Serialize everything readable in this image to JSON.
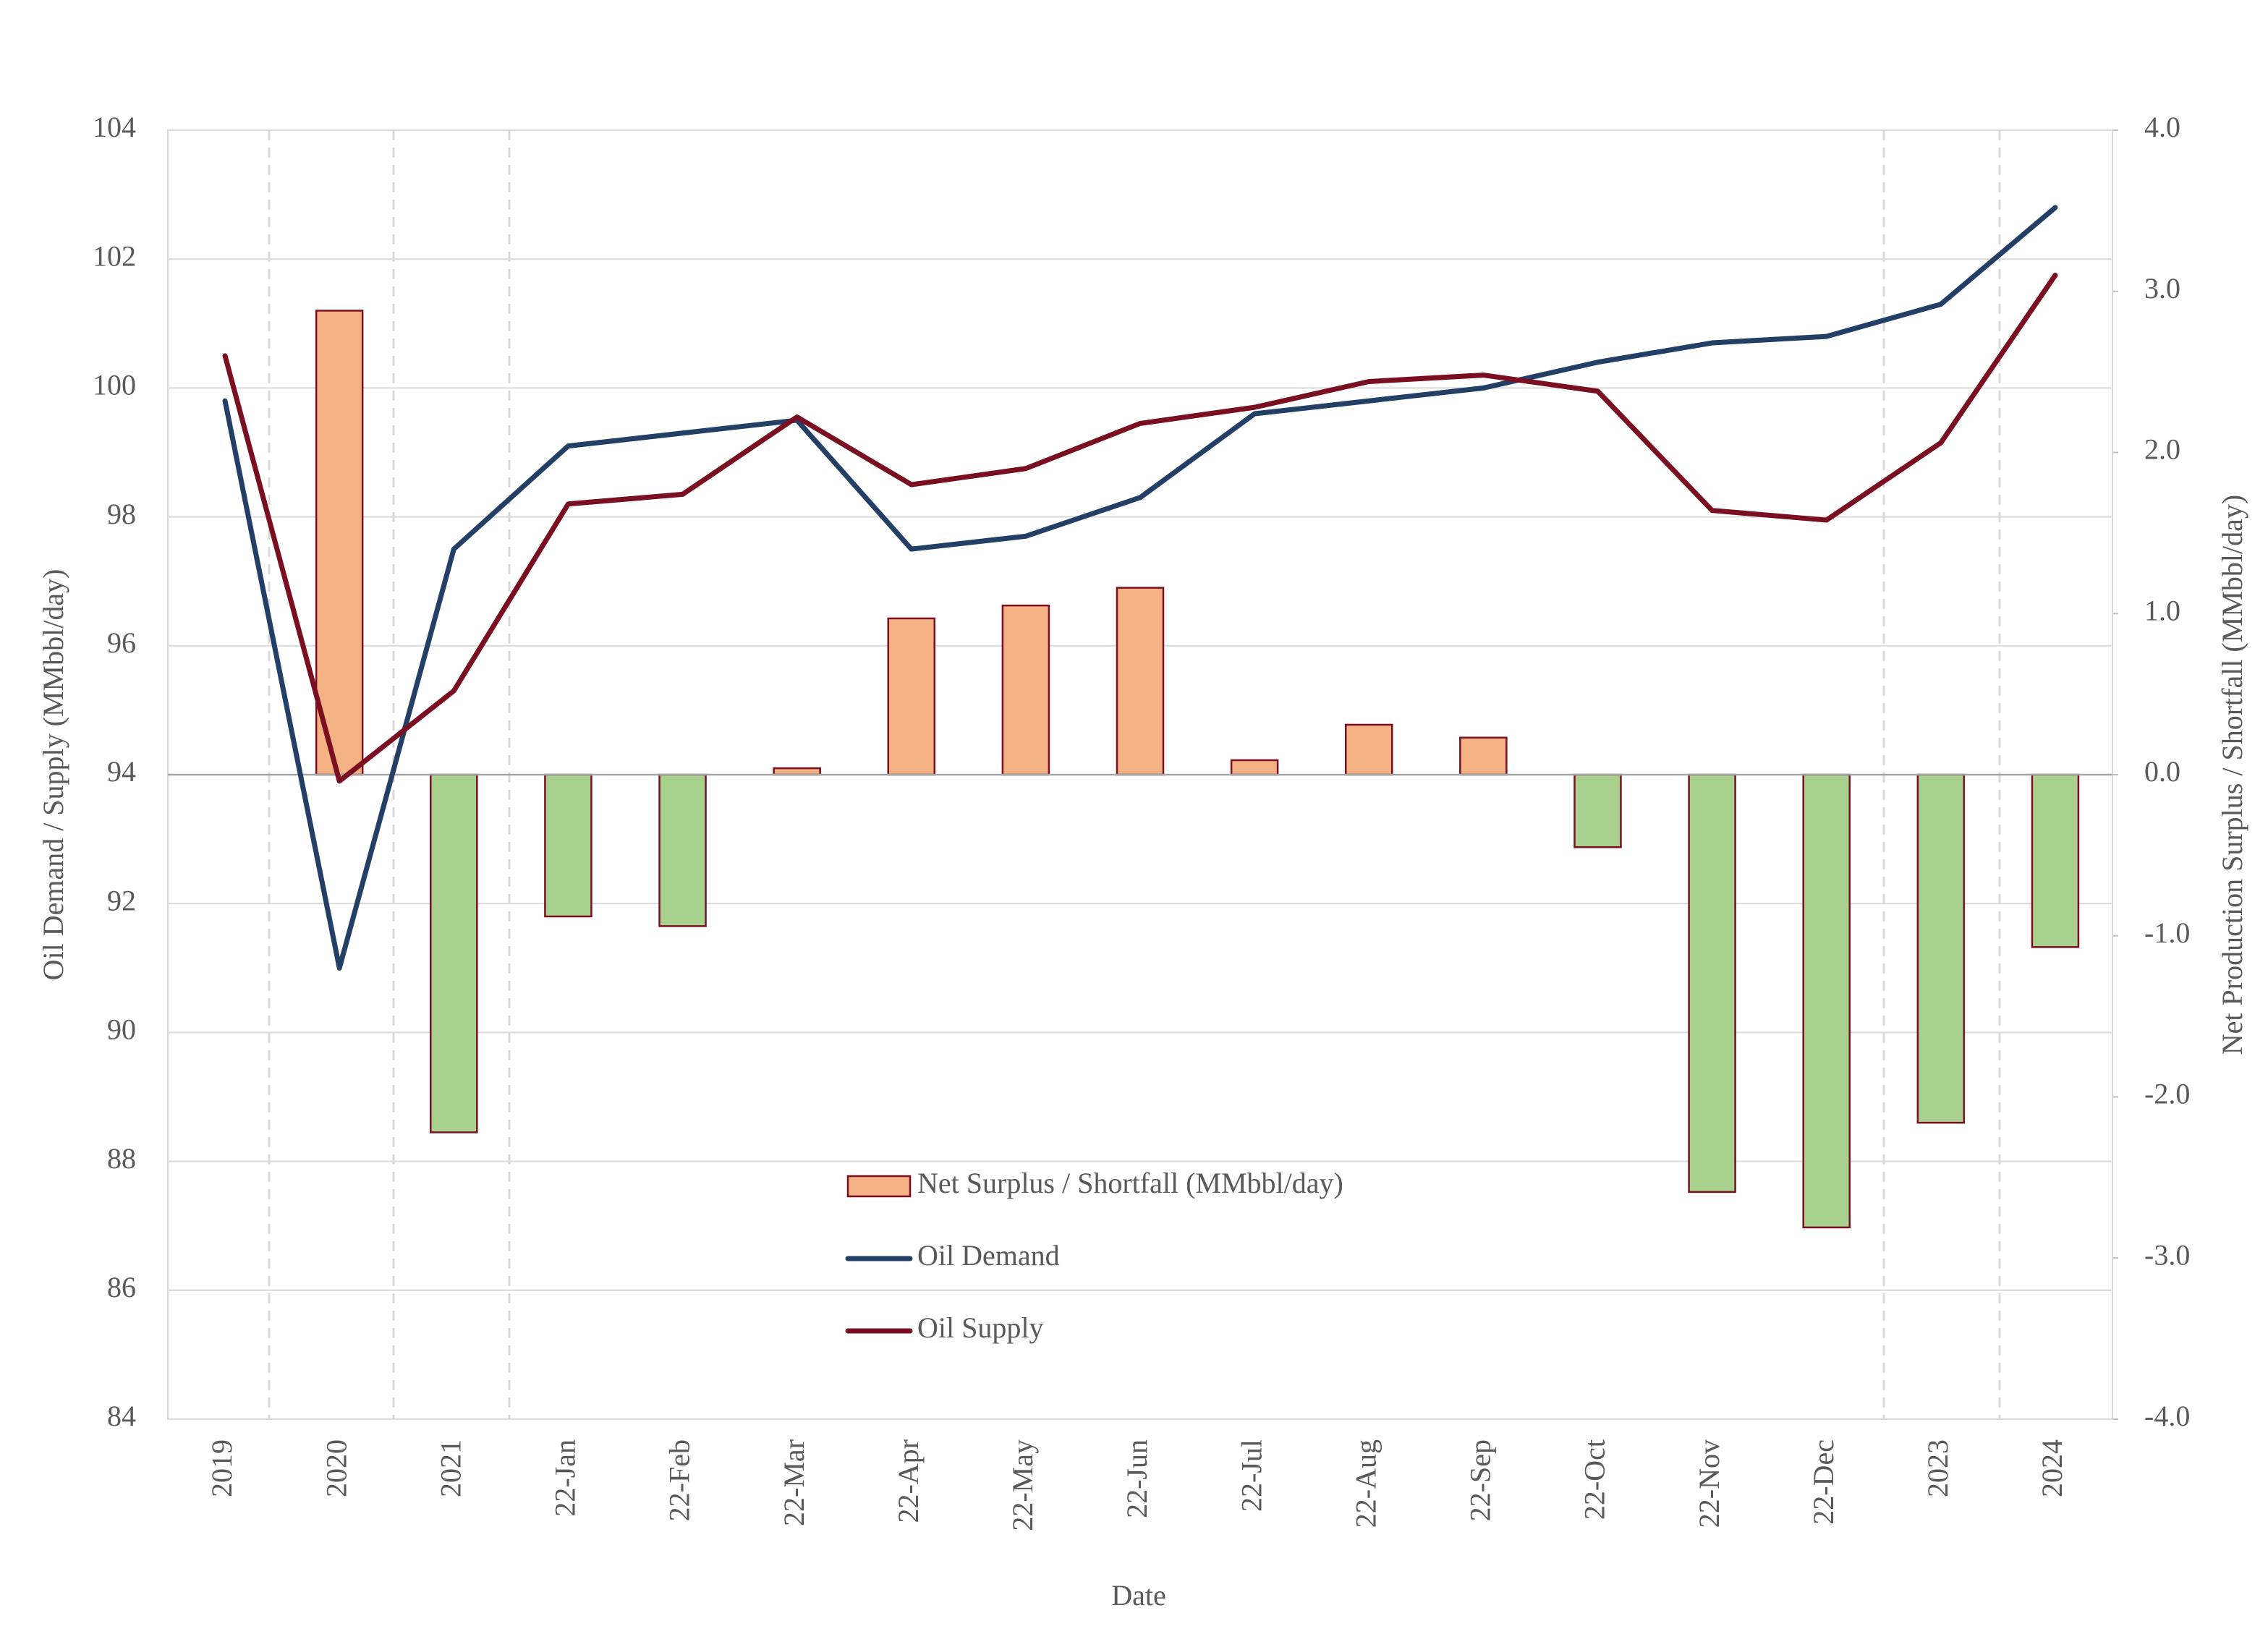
{
  "chart_data": {
    "type": "bar-line",
    "x_label": "Date",
    "y_label": "Oil Demand / Supply (MMbbl/day)",
    "y2_label": "Net Production Surplus / Shortfall (MMbbl/day)",
    "categories": [
      "2019",
      "2020",
      "2021",
      "22-Jan",
      "22-Feb",
      "22-Mar",
      "22-Apr",
      "22-May",
      "22-Jun",
      "22-Jul",
      "22-Aug",
      "22-Sep",
      "22-Oct",
      "22-Nov",
      "22-Dec",
      "2023",
      "2024"
    ],
    "series": [
      {
        "name": "Net Surplus / Shortfall (MMbbl/day)",
        "type": "bar",
        "axis": "y2",
        "color": "#f4b183",
        "negative_color": "#a9d18e",
        "edge_color": "#7a0f22",
        "values": [
          null,
          2.88,
          -2.22,
          -0.88,
          -0.94,
          0.04,
          0.97,
          1.05,
          1.16,
          0.09,
          0.31,
          0.23,
          -0.45,
          -2.59,
          -2.81,
          -2.16,
          -1.07
        ]
      },
      {
        "name": "Oil Demand",
        "type": "line",
        "color": "#243f66",
        "values": [
          99.8,
          91.0,
          97.5,
          99.1,
          99.3,
          99.5,
          97.5,
          97.7,
          98.3,
          99.6,
          99.8,
          100.0,
          100.4,
          100.7,
          100.8,
          101.3,
          102.8
        ]
      },
      {
        "name": "Oil Supply",
        "type": "line",
        "color": "#7a0f22",
        "values": [
          100.5,
          93.9,
          95.3,
          98.2,
          98.35,
          99.55,
          98.5,
          98.75,
          99.45,
          99.7,
          100.1,
          100.2,
          99.95,
          98.1,
          97.95,
          99.15,
          101.75
        ]
      }
    ],
    "ylim": [
      84,
      104
    ],
    "yticks": [
      84,
      86,
      88,
      90,
      92,
      94,
      96,
      98,
      100,
      102,
      104
    ],
    "y2lim": [
      -4,
      4
    ],
    "y2ticks": [
      {
        "value": -4,
        "label": "-4.0"
      },
      {
        "value": -3,
        "label": "-3.0"
      },
      {
        "value": -2,
        "label": "-2.0"
      },
      {
        "value": -1,
        "label": "-1.0"
      },
      {
        "value": 0,
        "label": "0.0"
      },
      {
        "value": 1,
        "label": "1.0"
      },
      {
        "value": 2,
        "label": "2.0"
      },
      {
        "value": 3,
        "label": "3.0"
      },
      {
        "value": 4,
        "label": "4.0"
      }
    ],
    "grid": true
  }
}
